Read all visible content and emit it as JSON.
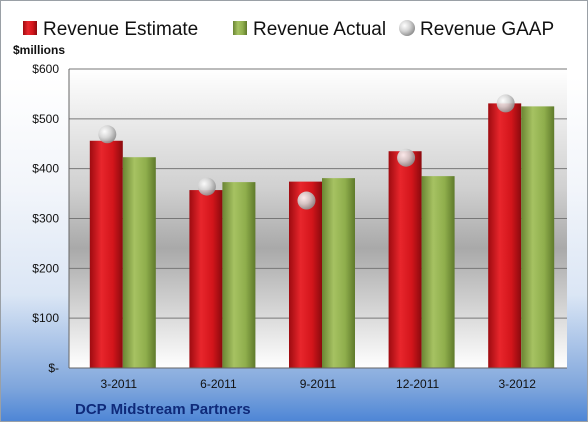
{
  "chart_data": {
    "type": "bar",
    "title": "",
    "company": "DCP Midstream Partners",
    "unit_label": "$millions",
    "categories": [
      "3-2011",
      "6-2011",
      "9-2011",
      "12-2011",
      "3-2012"
    ],
    "series": [
      {
        "name": "Revenue Estimate",
        "type": "bar",
        "color": "#d9141b",
        "values": [
          456,
          357,
          374,
          435,
          531
        ]
      },
      {
        "name": "Revenue Actual",
        "type": "bar",
        "color": "#8fae4c",
        "values": [
          423,
          373,
          381,
          385,
          525
        ]
      },
      {
        "name": "Revenue GAAP",
        "type": "scatter",
        "color": "#c0c0c0",
        "values": [
          465,
          360,
          332,
          418,
          527
        ]
      }
    ],
    "ylim": [
      0,
      600
    ],
    "yticks": [
      0,
      100,
      200,
      300,
      400,
      500,
      600
    ],
    "ytick_labels": [
      "$-",
      "$100",
      "$200",
      "$300",
      "$400",
      "$500",
      "$600"
    ],
    "grid": true,
    "legend": "top"
  }
}
